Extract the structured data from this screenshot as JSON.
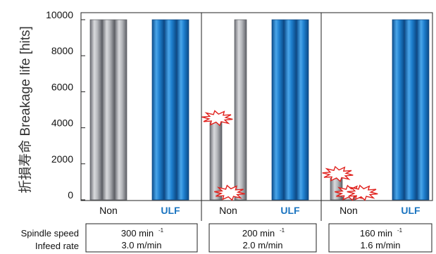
{
  "chart_data": {
    "type": "bar",
    "ylabel": "折損寿命  Breakage life [hits]",
    "ylim": [
      0,
      10000
    ],
    "yticks": [
      0,
      2000,
      4000,
      6000,
      8000,
      10000
    ],
    "grid": false,
    "groups": [
      {
        "speed_value": "300 min",
        "speed_sup": "-1",
        "infeed": "3.0 m/min",
        "series": [
          {
            "name": "Non",
            "values": [
              10000,
              10000,
              10000
            ],
            "breakage": [
              false,
              false,
              false
            ]
          },
          {
            "name": "ULF",
            "values": [
              10000,
              10000,
              10000
            ],
            "breakage": [
              false,
              false,
              false
            ]
          }
        ]
      },
      {
        "speed_value": "200 min",
        "speed_sup": "-1",
        "infeed": "2.0 m/min",
        "series": [
          {
            "name": "Non",
            "values": [
              4300,
              0,
              10000
            ],
            "breakage": [
              true,
              true,
              false
            ]
          },
          {
            "name": "ULF",
            "values": [
              10000,
              10000,
              10000
            ],
            "breakage": [
              false,
              false,
              false
            ]
          }
        ]
      },
      {
        "speed_value": "160 min",
        "speed_sup": "-1",
        "infeed": "1.6 m/min",
        "series": [
          {
            "name": "Non",
            "values": [
              1200,
              150,
              0
            ],
            "breakage": [
              true,
              true,
              true
            ]
          },
          {
            "name": "ULF",
            "values": [
              10000,
              10000,
              10000
            ],
            "breakage": [
              false,
              false,
              false
            ]
          }
        ]
      }
    ],
    "condition_labels": {
      "speed": "Spindle speed",
      "infeed": "Infeed rate"
    },
    "colors": {
      "non_bar": "#a9abb0",
      "ulf_bar": "#1a78c8",
      "ulf_text": "#1a74c0",
      "breakage_mark": "#e0201c"
    }
  }
}
